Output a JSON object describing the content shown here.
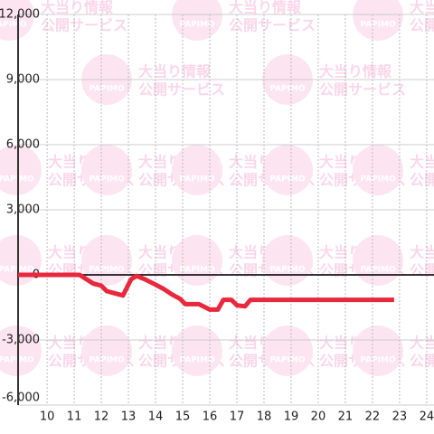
{
  "chart_data": {
    "type": "line",
    "x": [
      8.93,
      11.2,
      11.7,
      12.0,
      12.2,
      12.5,
      12.8,
      13.1,
      13.3,
      13.6,
      14.0,
      14.3,
      14.6,
      14.9,
      15.1,
      15.6,
      16.0,
      16.3,
      16.5,
      16.8,
      17.0,
      17.3,
      17.5,
      18.0,
      22.8
    ],
    "series": [
      {
        "color": "#e8283c",
        "values": [
          0,
          0,
          -400,
          -500,
          -750,
          -850,
          -950,
          -200,
          -50,
          -200,
          -450,
          -650,
          -900,
          -1100,
          -1350,
          -1350,
          -1600,
          -1600,
          -1150,
          -1150,
          -1400,
          -1450,
          -1150,
          -1150,
          -1150
        ]
      }
    ],
    "xlim": [
      8.93,
      24.27
    ],
    "xticks": [
      10,
      11,
      12,
      13,
      14,
      15,
      16,
      17,
      18,
      19,
      20,
      21,
      22,
      23,
      24
    ],
    "ylim": [
      -6000,
      12000
    ],
    "yticks": [
      {
        "value": -6000,
        "label": "-6,000"
      },
      {
        "value": -3000,
        "label": "-3,000"
      },
      0,
      {
        "value": 3000,
        "label": "3,000"
      },
      {
        "value": 6000,
        "label": "6,000"
      },
      {
        "value": 9000,
        "label": "9,000"
      },
      {
        "value": 12000,
        "label": "12,000"
      }
    ],
    "grid": true
  },
  "watermark": {
    "logo": "PAPIMO",
    "line1": "大当り情報",
    "line2": "公開サービス"
  }
}
